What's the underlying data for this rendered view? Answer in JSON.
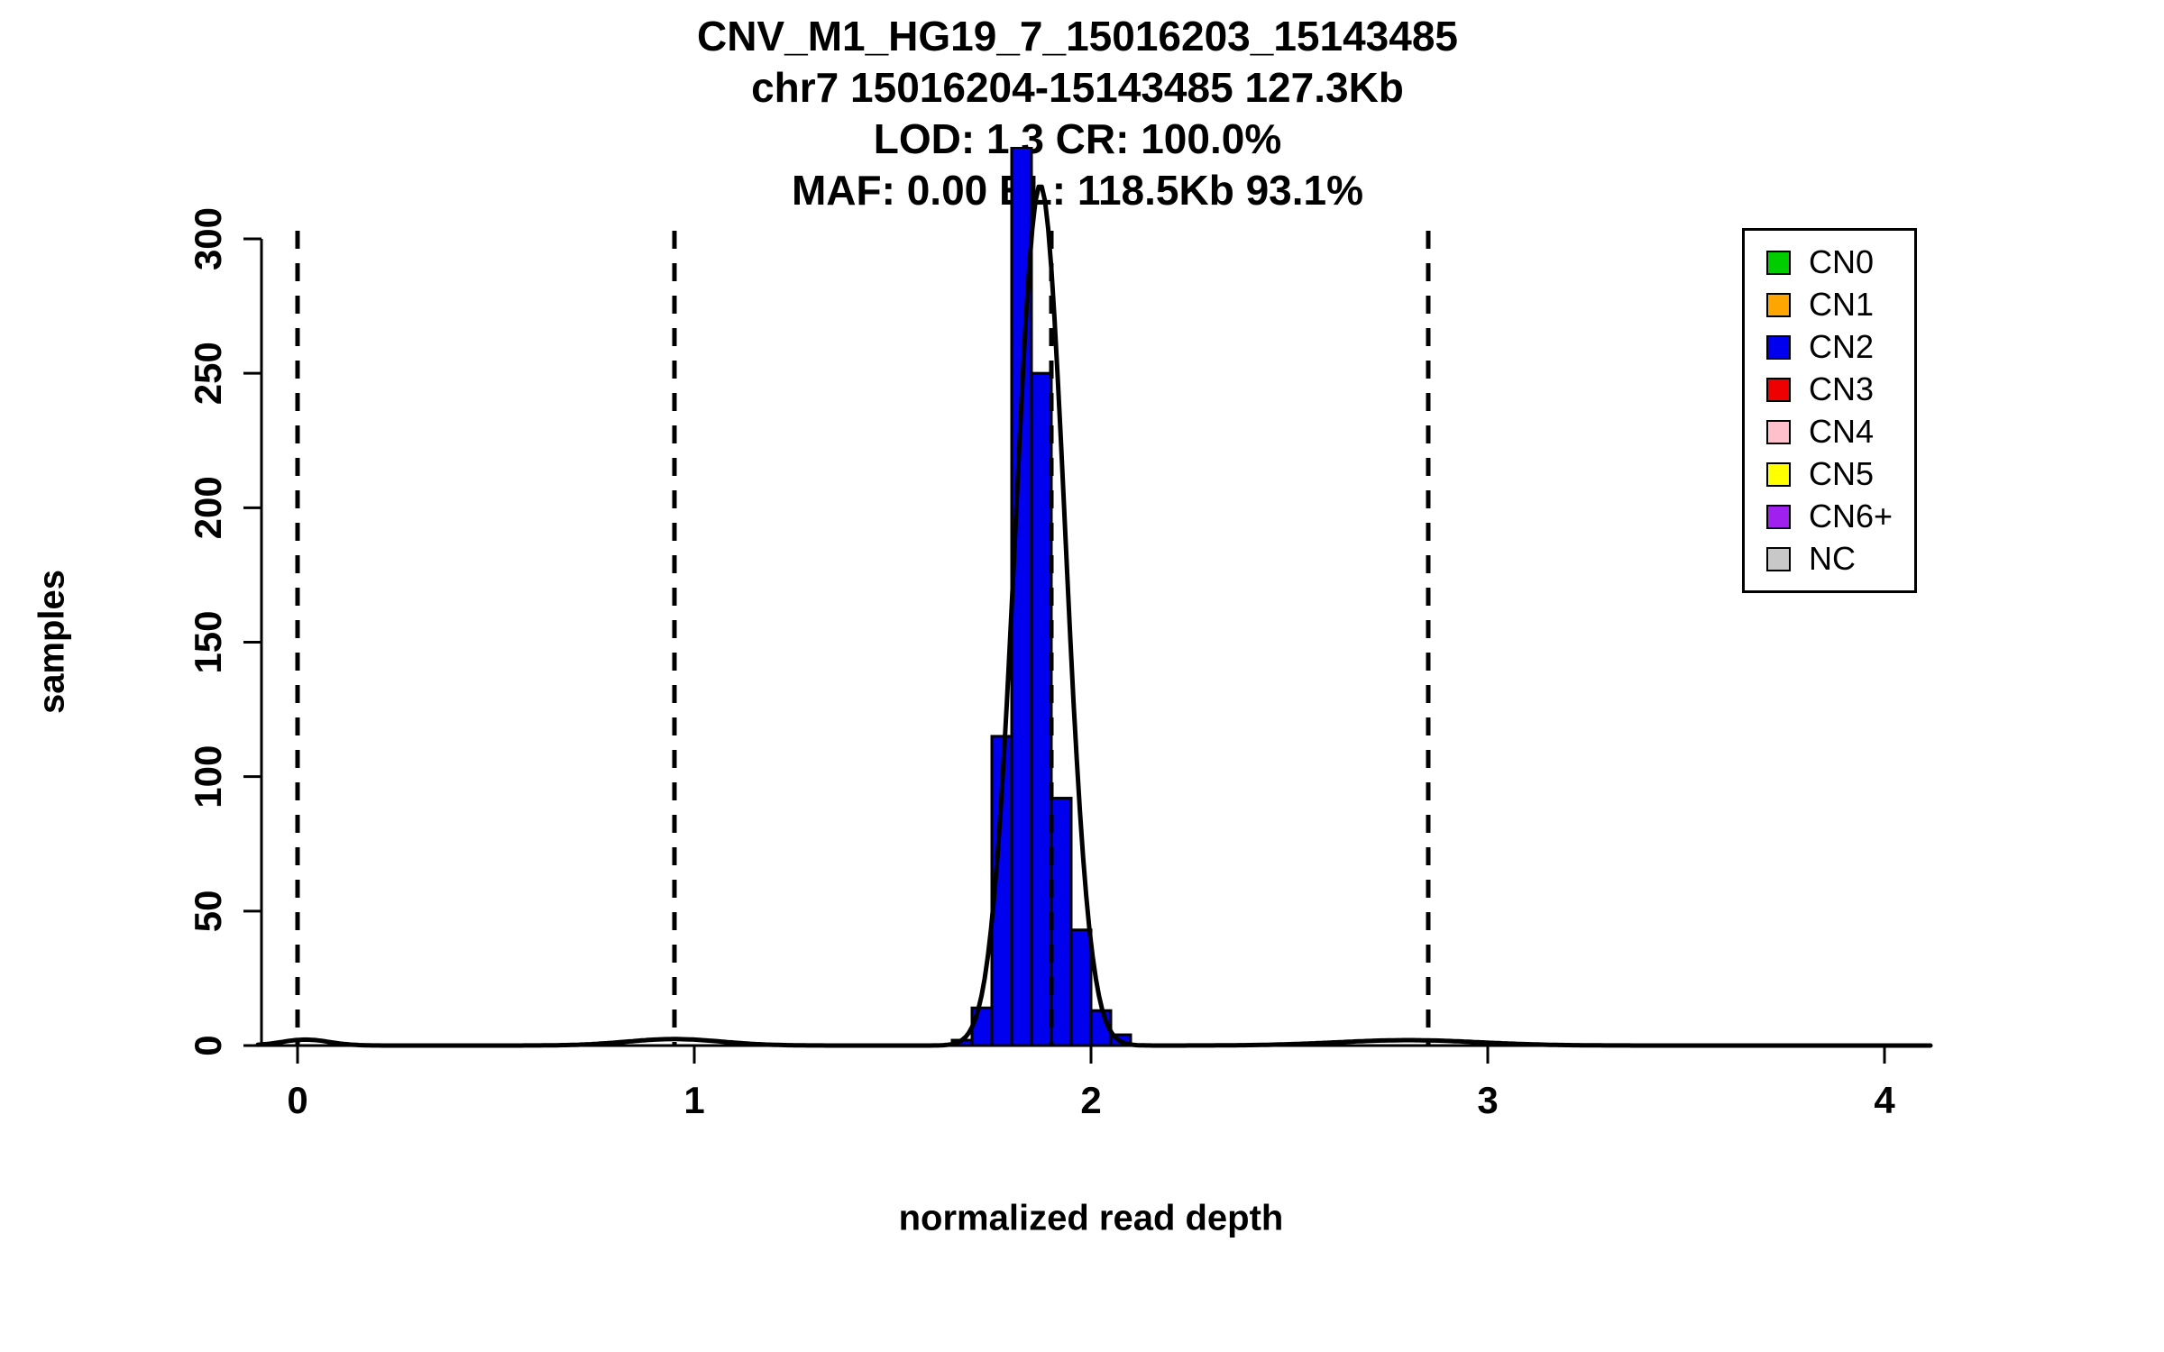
{
  "title_lines": [
    "CNV_M1_HG19_7_15016203_15143485",
    "chr7 15016204-15143485 127.3Kb",
    "LOD: 1.3 CR: 100.0%",
    "MAF: 0.00 EL: 118.5Kb 93.1%"
  ],
  "chart_data": {
    "type": "bar",
    "subtype": "histogram-with-density-curve",
    "title": "CNV_M1_HG19_7_15016203_15143485",
    "xlabel": "normalized read depth",
    "ylabel": "samples",
    "xlim": [
      -0.1,
      4.1
    ],
    "ylim": [
      0,
      300
    ],
    "x_ticks": [
      0,
      1,
      2,
      3,
      4
    ],
    "y_ticks": [
      0,
      50,
      100,
      150,
      200,
      250,
      300
    ],
    "grid": false,
    "bin_width": 0.05,
    "bins": [
      {
        "x0": 1.65,
        "count": 2
      },
      {
        "x0": 1.7,
        "count": 14
      },
      {
        "x0": 1.75,
        "count": 115
      },
      {
        "x0": 1.8,
        "count": 334
      },
      {
        "x0": 1.85,
        "count": 250
      },
      {
        "x0": 1.9,
        "count": 92
      },
      {
        "x0": 1.95,
        "count": 43
      },
      {
        "x0": 2.0,
        "count": 13
      },
      {
        "x0": 2.05,
        "count": 4
      }
    ],
    "bar_fill": "#0000EE",
    "bar_stroke": "#000000",
    "dashed_lines_x": [
      0,
      0.95,
      1.9,
      2.85
    ],
    "density_components": [
      {
        "mean": 1.872,
        "sd": 0.062,
        "amp": 320
      },
      {
        "mean": 0.02,
        "sd": 0.06,
        "amp": 2.2
      },
      {
        "mean": 0.95,
        "sd": 0.12,
        "amp": 2.4
      },
      {
        "mean": 2.8,
        "sd": 0.18,
        "amp": 2.0
      }
    ],
    "legend": {
      "position": "top-right",
      "items": [
        {
          "label": "CN0",
          "color": "#00CD00"
        },
        {
          "label": "CN1",
          "color": "#FFA500"
        },
        {
          "label": "CN2",
          "color": "#0000EE"
        },
        {
          "label": "CN3",
          "color": "#EE0000"
        },
        {
          "label": "CN4",
          "color": "#FFC0CB"
        },
        {
          "label": "CN5",
          "color": "#FFFF00"
        },
        {
          "label": "CN6+",
          "color": "#A020F0"
        },
        {
          "label": "NC",
          "color": "#C8C8C8"
        }
      ]
    }
  }
}
